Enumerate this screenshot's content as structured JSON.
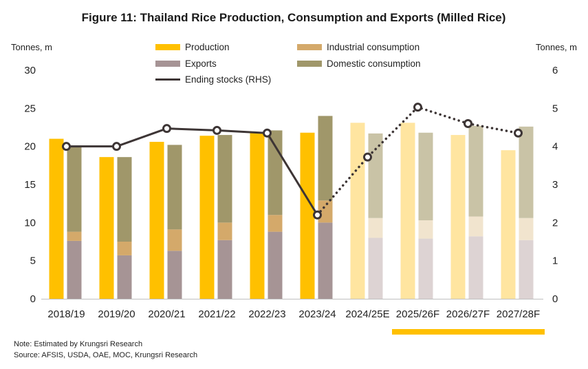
{
  "chart_data": {
    "type": "bar",
    "title": "Figure 11: Thailand Rice Production, Consumption and Exports (Milled Rice)",
    "ylabel_left": "Tonnes, m",
    "ylabel_right": "Tonnes, m",
    "ylim_left": [
      0,
      30
    ],
    "ylim_right": [
      0,
      6
    ],
    "yticks_left": [
      "0",
      "5",
      "10",
      "15",
      "20",
      "25",
      "30"
    ],
    "yticks_right": [
      "0",
      "1",
      "2",
      "3",
      "4",
      "5",
      "6"
    ],
    "categories": [
      "2018/19",
      "2019/20",
      "2020/21",
      "2021/22",
      "2022/23",
      "2023/24",
      "2024/25E",
      "2025/26F",
      "2026/27F",
      "2027/28F"
    ],
    "forecast_start_index": 6,
    "legend": [
      {
        "key": "production",
        "label": "Production"
      },
      {
        "key": "industrial",
        "label": "Industrial consumption"
      },
      {
        "key": "exports",
        "label": "Exports"
      },
      {
        "key": "domestic",
        "label": "Domestic consumption"
      },
      {
        "key": "stocks",
        "label": "Ending stocks (RHS)"
      }
    ],
    "series": [
      {
        "name": "Production",
        "key": "production",
        "values": [
          21.0,
          18.6,
          20.6,
          21.4,
          21.8,
          21.8,
          23.1,
          23.1,
          21.5,
          19.5
        ]
      },
      {
        "name": "Exports",
        "key": "exports",
        "values": [
          7.6,
          5.7,
          6.3,
          7.7,
          8.8,
          10.0,
          8.0,
          7.9,
          8.2,
          7.7
        ]
      },
      {
        "name": "Industrial consumption",
        "key": "industrial",
        "values": [
          1.2,
          1.8,
          2.8,
          2.3,
          2.2,
          2.9,
          2.6,
          2.4,
          2.6,
          2.9
        ]
      },
      {
        "name": "Domestic consumption",
        "key": "domestic",
        "values": [
          11.2,
          11.1,
          11.1,
          11.5,
          11.1,
          11.1,
          11.1,
          11.5,
          11.9,
          12.0
        ]
      },
      {
        "name": "Ending stocks (RHS)",
        "key": "stocks",
        "axis": "right",
        "values": [
          4.0,
          4.0,
          4.47,
          4.42,
          4.35,
          2.2,
          3.72,
          5.03,
          4.6,
          4.35
        ]
      }
    ],
    "colors": {
      "production": "#FFC000",
      "exports": "#A69495",
      "industrial": "#D4A96A",
      "domestic": "#A0976A",
      "production_forecast": "#FFE5A0",
      "exports_forecast": "#DDD3D3",
      "industrial_forecast": "#F1E4CE",
      "domestic_forecast": "#C9C3A6",
      "stocks": "#3D3535",
      "highlight": "#FFC000"
    }
  },
  "notes": {
    "note": "Note: Estimated by Krungsri Research",
    "source": "Source: AFSIS, USDA, OAE, MOC, Krungsri Research"
  }
}
